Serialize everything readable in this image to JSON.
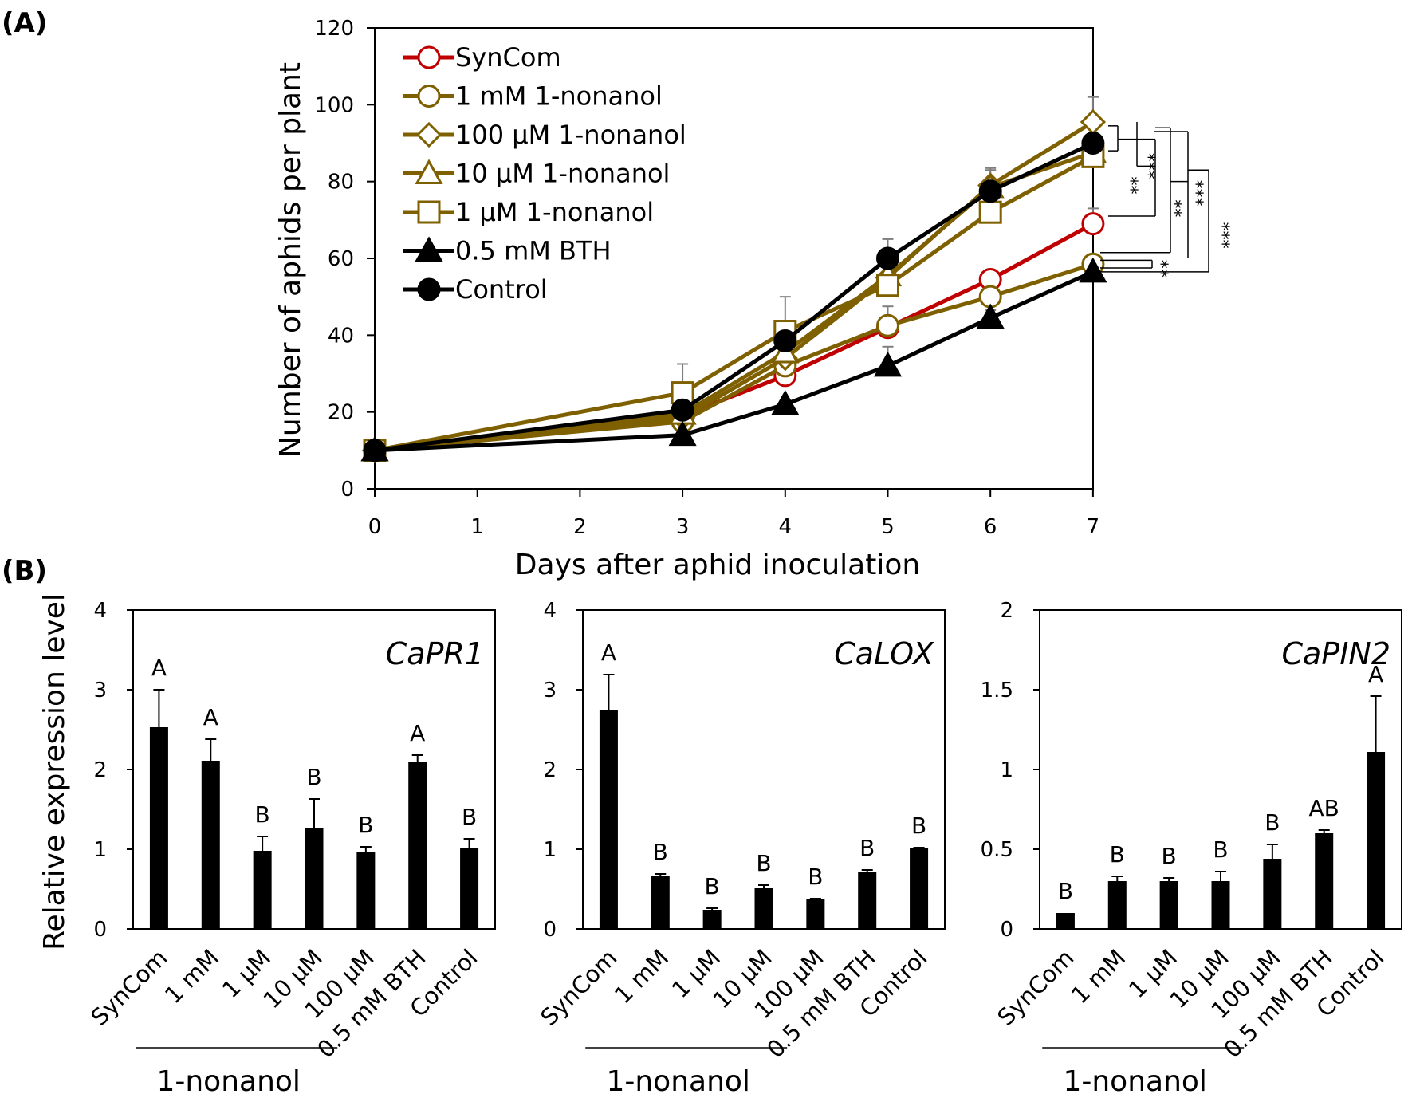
{
  "colors": {
    "syncom": "#c00000",
    "nonanol": "#7f6000",
    "black": "#000000",
    "errorbar": "#7f7f7f"
  },
  "chart_data": [
    {
      "type": "line",
      "panel_label": "(A)",
      "xlabel": "Days after aphid inoculation",
      "ylabel": "Number of aphids per plant",
      "xlim": [
        0,
        7
      ],
      "ylim": [
        0,
        120
      ],
      "x_ticks": [
        "0",
        "1",
        "2",
        "3",
        "4",
        "5",
        "6",
        "7"
      ],
      "y_ticks": [
        "0",
        "20",
        "40",
        "60",
        "80",
        "100",
        "120"
      ],
      "x": [
        0,
        3,
        4,
        5,
        6,
        7
      ],
      "series": [
        {
          "name": "SynCom",
          "marker": "circle-open",
          "color": "#c00000",
          "values": [
            10,
            19,
            29.5,
            42,
            54.5,
            69
          ],
          "errors": [
            0,
            0,
            0,
            0,
            2.5,
            4
          ]
        },
        {
          "name": "1 mM 1-nonanol",
          "marker": "circle-open",
          "color": "#7f6000",
          "values": [
            10,
            17.5,
            32,
            42.5,
            50,
            58.5
          ],
          "errors": [
            0,
            0,
            0,
            5,
            0,
            0
          ]
        },
        {
          "name": "100 µM 1-nonanol",
          "marker": "diamond-open",
          "color": "#7f6000",
          "values": [
            10,
            18.5,
            34,
            55,
            79,
            95.5
          ],
          "errors": [
            0,
            0,
            0,
            0,
            4,
            6.5
          ]
        },
        {
          "name": "10 µM 1-nonanol",
          "marker": "triangle-open",
          "color": "#7f6000",
          "values": [
            10,
            19.5,
            35.5,
            55.5,
            78.5,
            87.5
          ],
          "errors": [
            0,
            0,
            0,
            0,
            0,
            0
          ]
        },
        {
          "name": "1 µM 1-nonanol",
          "marker": "square-open",
          "color": "#7f6000",
          "values": [
            10,
            25,
            41,
            53,
            72,
            86.5
          ],
          "errors": [
            0,
            7.5,
            9,
            0,
            0,
            0
          ]
        },
        {
          "name": "0.5 mM BTH",
          "marker": "triangle-filled",
          "color": "#000000",
          "values": [
            10,
            14,
            22,
            32,
            44.5,
            56.5
          ],
          "errors": [
            0,
            0,
            0,
            5,
            2,
            0
          ]
        },
        {
          "name": "Control",
          "marker": "circle-filled",
          "color": "#000000",
          "values": [
            10,
            20.5,
            38.5,
            60,
            77.5,
            90
          ],
          "errors": [
            0,
            0,
            0,
            5,
            6,
            0
          ]
        }
      ],
      "significance_labels": [
        "**",
        "***",
        "**",
        "***",
        "***",
        "*",
        "*"
      ]
    },
    {
      "type": "bar",
      "panel_label": "(B)",
      "gene": "CaPR1",
      "ylabel": "Relative expression level",
      "categories": [
        "SynCom",
        "1 mM",
        "1 µM",
        "10 µM",
        "100 µM",
        "0.5 mM BTH",
        "Control"
      ],
      "group_label": "1-nonanol",
      "values": [
        2.53,
        2.11,
        0.98,
        1.27,
        0.97,
        2.09,
        1.02
      ],
      "errors": [
        0.47,
        0.27,
        0.18,
        0.36,
        0.06,
        0.09,
        0.11
      ],
      "letters": [
        "A",
        "A",
        "B",
        "B",
        "B",
        "A",
        "B"
      ],
      "ylim": [
        0,
        4
      ],
      "y_ticks": [
        "0",
        "1",
        "2",
        "3",
        "4"
      ]
    },
    {
      "type": "bar",
      "gene": "CaLOX",
      "categories": [
        "SynCom",
        "1 mM",
        "1 µM",
        "10 µM",
        "100 µM",
        "0.5 mM BTH",
        "Control"
      ],
      "group_label": "1-nonanol",
      "values": [
        2.75,
        0.67,
        0.24,
        0.52,
        0.37,
        0.72,
        1.01
      ],
      "errors": [
        0.44,
        0.02,
        0.02,
        0.03,
        0.01,
        0.02,
        0.01
      ],
      "letters": [
        "A",
        "B",
        "B",
        "B",
        "B",
        "B",
        "B"
      ],
      "ylim": [
        0,
        4
      ],
      "y_ticks": [
        "0",
        "1",
        "2",
        "3",
        "4"
      ]
    },
    {
      "type": "bar",
      "gene": "CaPIN2",
      "categories": [
        "SynCom",
        "1 mM",
        "1 µM",
        "10 µM",
        "100 µM",
        "0.5 mM BTH",
        "Control"
      ],
      "group_label": "1-nonanol",
      "values": [
        0.1,
        0.3,
        0.3,
        0.3,
        0.44,
        0.6,
        1.11
      ],
      "errors": [
        0,
        0.03,
        0.02,
        0.06,
        0.09,
        0.02,
        0.35
      ],
      "letters": [
        "B",
        "B",
        "B",
        "B",
        "B",
        "AB",
        "A"
      ],
      "ylim": [
        0,
        2
      ],
      "y_ticks": [
        "0",
        "0.5",
        "1",
        "1.5",
        "2"
      ]
    }
  ]
}
